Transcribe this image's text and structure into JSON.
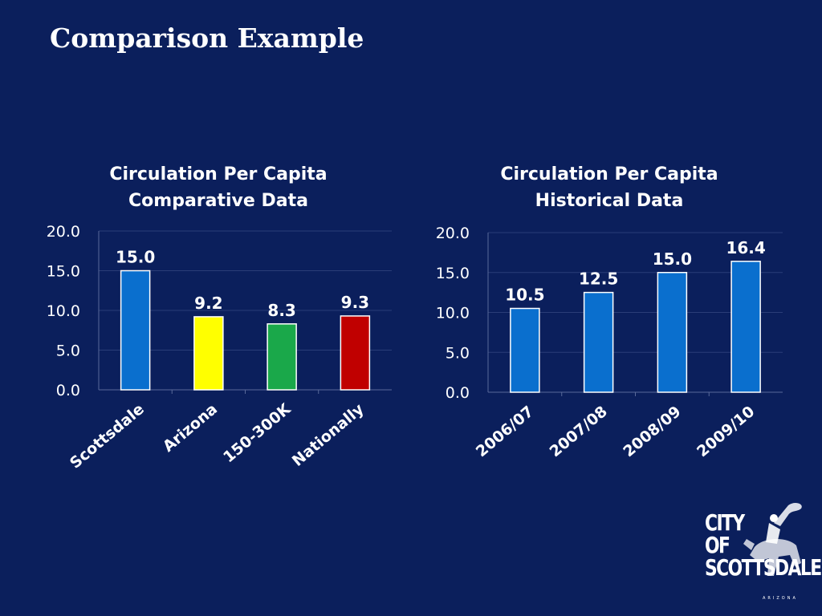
{
  "slide": {
    "title": "Comparison Example"
  },
  "logo": {
    "line1": "CITY",
    "line2": "OF",
    "line3": "SCOTTSDALE",
    "sub": "ARIZONA"
  },
  "chart_data": [
    {
      "type": "bar",
      "title": "Circulation Per Capita",
      "subtitle": "Comparative Data",
      "categories": [
        "Scottsdale",
        "Arizona",
        "150-300K",
        "Nationally"
      ],
      "values": [
        15.0,
        9.2,
        8.3,
        9.3
      ],
      "data_labels": [
        "15.0",
        "9.2",
        "8.3",
        "9.3"
      ],
      "colors": [
        "#0a6fce",
        "#ffff00",
        "#1aa84a",
        "#c00000"
      ],
      "ylim": [
        0,
        20
      ],
      "yticks": [
        "0.0",
        "5.0",
        "10.0",
        "15.0",
        "20.0"
      ],
      "grid": true,
      "xlabel": "",
      "ylabel": ""
    },
    {
      "type": "bar",
      "title": "Circulation Per Capita",
      "subtitle": "Historical Data",
      "categories": [
        "2006/07",
        "2007/08",
        "2008/09",
        "2009/10"
      ],
      "values": [
        10.5,
        12.5,
        15.0,
        16.4
      ],
      "data_labels": [
        "10.5",
        "12.5",
        "15.0",
        "16.4"
      ],
      "colors": [
        "#0a6fce",
        "#0a6fce",
        "#0a6fce",
        "#0a6fce"
      ],
      "ylim": [
        0,
        20
      ],
      "yticks": [
        "0.0",
        "5.0",
        "10.0",
        "15.0",
        "20.0"
      ],
      "grid": true,
      "xlabel": "",
      "ylabel": ""
    }
  ]
}
